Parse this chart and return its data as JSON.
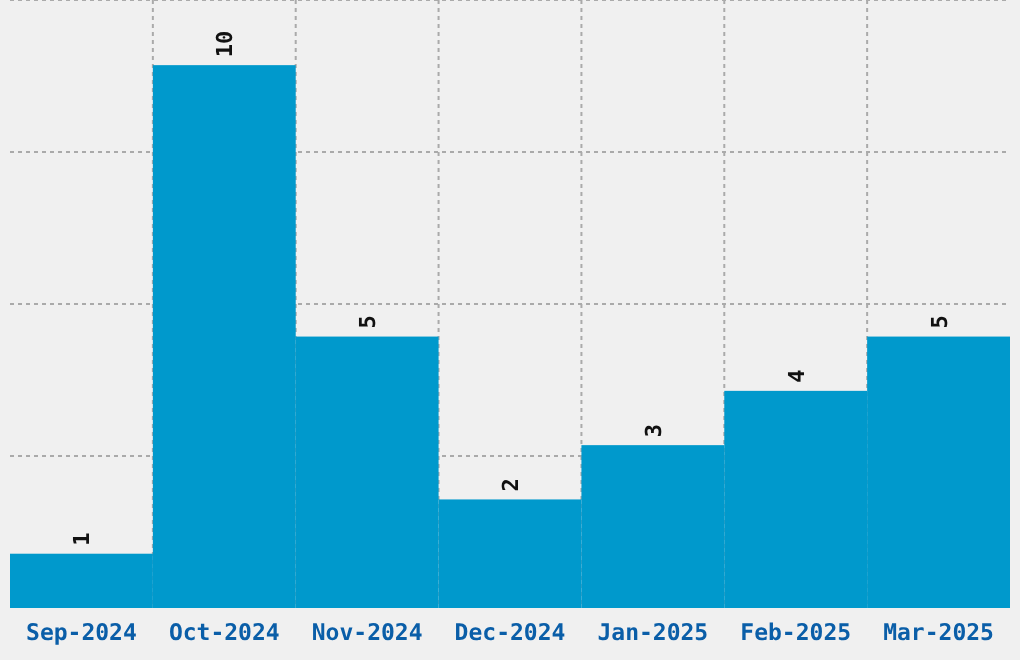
{
  "chart_data": {
    "type": "bar",
    "categories": [
      "Sep-2024",
      "Oct-2024",
      "Nov-2024",
      "Dec-2024",
      "Jan-2025",
      "Feb-2025",
      "Mar-2025"
    ],
    "values": [
      1,
      10,
      5,
      2,
      3,
      4,
      5
    ],
    "color": "#0099cc",
    "ylim": [
      0,
      11.2
    ],
    "yticks": [
      {
        "value": 2.8,
        "label": null
      },
      {
        "value": 5.6,
        "label": null
      },
      {
        "value": 8.4,
        "label": null
      },
      {
        "value": 11.2,
        "label": null
      }
    ],
    "grid": true,
    "tick_labels": "x",
    "data_labels": true
  }
}
